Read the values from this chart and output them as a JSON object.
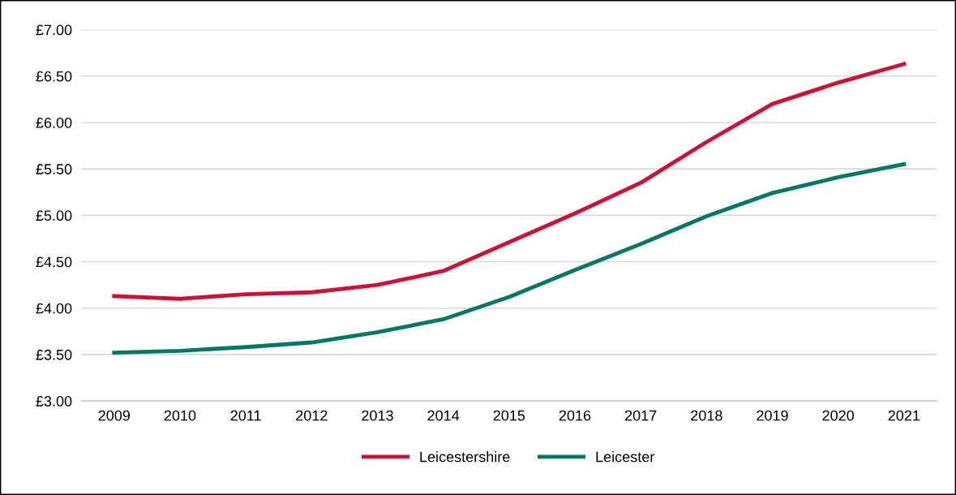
{
  "chart_data": {
    "type": "line",
    "categories": [
      "2009",
      "2010",
      "2011",
      "2012",
      "2013",
      "2014",
      "2015",
      "2016",
      "2017",
      "2018",
      "2019",
      "2020",
      "2021"
    ],
    "series": [
      {
        "name": "Leicestershire",
        "color": "#d0103a",
        "values": [
          4.13,
          4.1,
          4.15,
          4.17,
          4.25,
          4.4,
          4.71,
          5.02,
          5.35,
          5.79,
          6.2,
          6.43,
          6.63
        ]
      },
      {
        "name": "Leicester",
        "color": "#007a63",
        "values": [
          3.52,
          3.54,
          3.58,
          3.63,
          3.74,
          3.88,
          4.12,
          4.41,
          4.69,
          4.99,
          5.24,
          5.41,
          5.55
        ]
      }
    ],
    "ylim": [
      3,
      7
    ],
    "yticks": [
      {
        "value": 3,
        "label": "£3.00"
      },
      {
        "value": 3.5,
        "label": "£3.50"
      },
      {
        "value": 4,
        "label": "£4.00"
      },
      {
        "value": 4.5,
        "label": "£4.50"
      },
      {
        "value": 5,
        "label": "£5.00"
      },
      {
        "value": 5.5,
        "label": "£5.50"
      },
      {
        "value": 6,
        "label": "£6.00"
      },
      {
        "value": 6.5,
        "label": "£6.50"
      },
      {
        "value": 7,
        "label": "£7.00"
      }
    ],
    "grid": "y",
    "legend": "bottom",
    "marker": "none",
    "line_style": "solid"
  }
}
